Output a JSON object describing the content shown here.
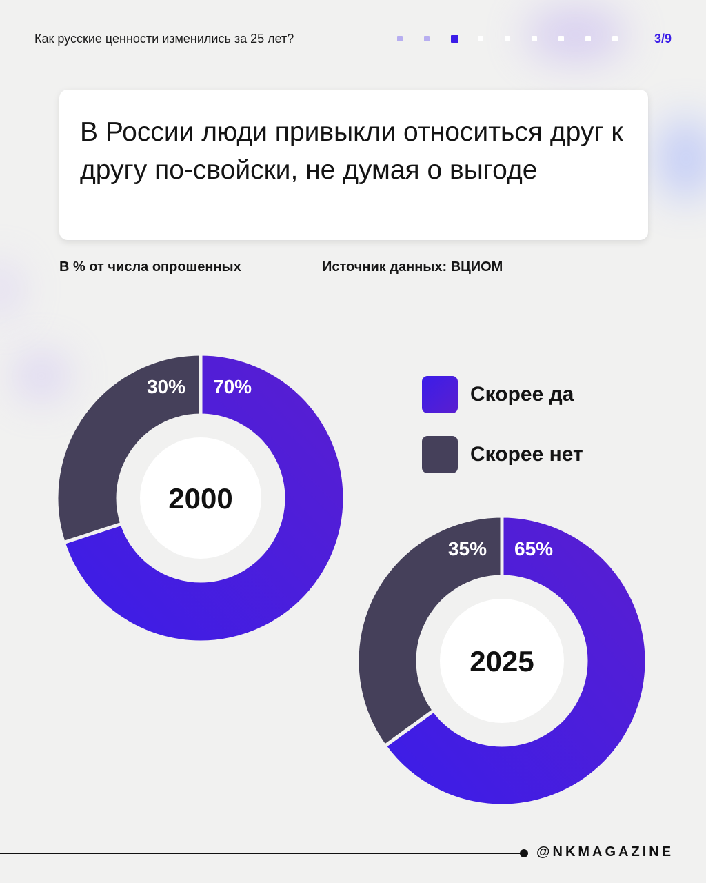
{
  "header": {
    "title": "Как русские ценности изменились за 25 лет?",
    "page_indicator": "3/9",
    "progress": {
      "current": 3,
      "total": 9
    }
  },
  "headline": "В России люди привыкли относиться друг к другу по-свойски, не думая о выгоде",
  "meta": {
    "unit_note": "В % от числа опрошенных",
    "source": "Источник данных: ВЦИОМ"
  },
  "colors": {
    "yes": "#3b1de8",
    "yes_gradient_end": "#5a1ed0",
    "no": "#45405a",
    "accent": "#3b1de8"
  },
  "chart_data": [
    {
      "type": "pie",
      "title": "2000",
      "categories": [
        "Скорее да",
        "Скорее нет"
      ],
      "values": [
        70,
        30
      ],
      "value_labels": [
        "70%",
        "30%"
      ],
      "legend_position": "right"
    },
    {
      "type": "pie",
      "title": "2025",
      "categories": [
        "Скорее да",
        "Скорее нет"
      ],
      "values": [
        65,
        35
      ],
      "value_labels": [
        "65%",
        "35%"
      ],
      "legend_position": "right"
    }
  ],
  "legend": [
    {
      "label": "Скорее да",
      "color": "#3b1de8"
    },
    {
      "label": "Скорее нет",
      "color": "#45405a"
    }
  ],
  "footer": {
    "handle": "@NKMAGAZINE"
  }
}
